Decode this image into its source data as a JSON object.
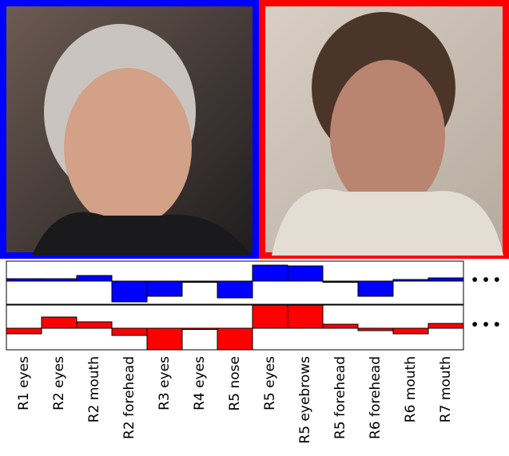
{
  "ellipsis": "•••",
  "chart_data": [
    {
      "type": "bar",
      "color": "#0000ff",
      "ylim": [
        -1.45,
        1.25
      ],
      "values": [
        0.15,
        0.15,
        0.35,
        -1.3,
        -0.95,
        -0.05,
        -1.05,
        1.0,
        0.95,
        0.0,
        -0.95,
        0.1,
        0.2
      ]
    },
    {
      "type": "bar",
      "color": "#ff0000",
      "ylim": [
        -1.35,
        1.45
      ],
      "categories": [
        "R1 eyes",
        "R2 eyes",
        "R2 mouth",
        "R2 forehead",
        "R3 eyes",
        "R4 eyes",
        "R5 nose",
        "R5 eyes",
        "R5 eyebrows",
        "R5 forehead",
        "R6 forehead",
        "R6 mouth",
        "R7 mouth"
      ],
      "values": [
        -0.35,
        0.7,
        0.4,
        -0.45,
        -1.35,
        0.0,
        -1.35,
        1.45,
        1.45,
        0.25,
        -0.15,
        -0.35,
        0.3
      ]
    }
  ]
}
